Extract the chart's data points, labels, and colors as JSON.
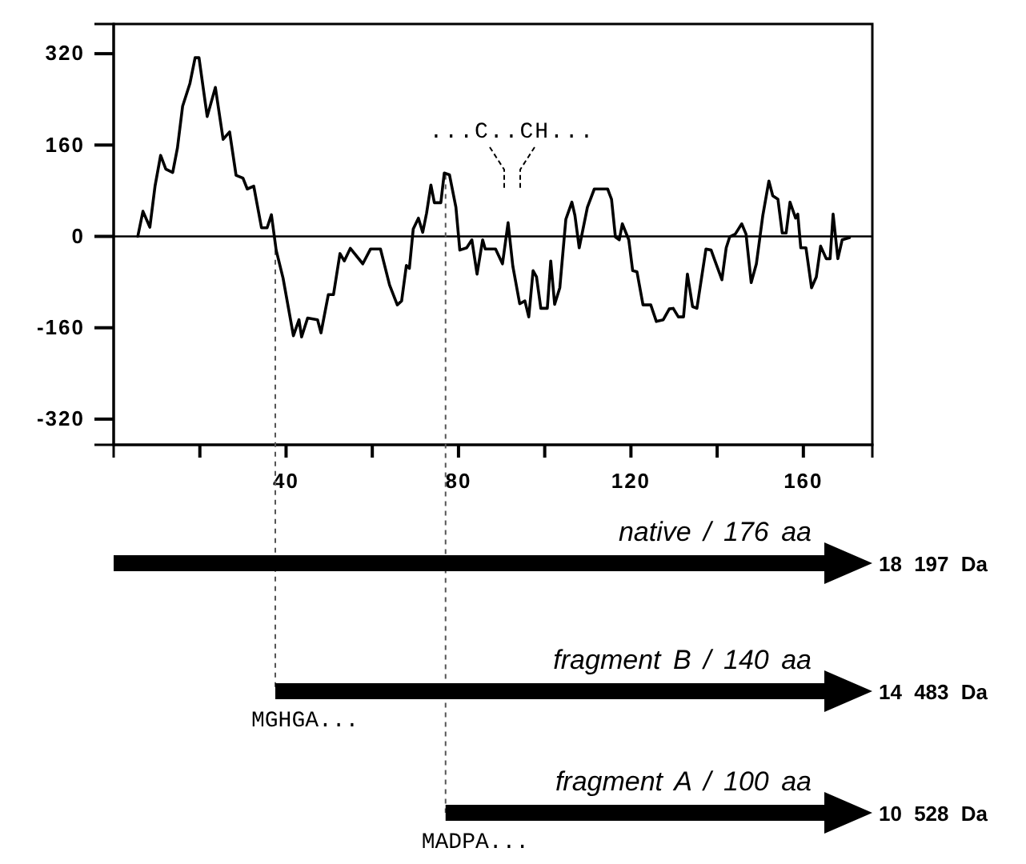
{
  "chart_data": {
    "type": "line",
    "x": [
      5.6,
      6.8,
      8.4,
      9.6,
      10.9,
      12.1,
      13.7,
      14.8,
      16,
      17.7,
      18.9,
      19.8,
      21.7,
      23.6,
      25.4,
      26.9,
      28.4,
      30,
      31,
      32.5,
      34.3,
      35.6,
      36.6,
      37.7,
      39.3,
      41.7,
      43,
      43.6,
      45,
      47.3,
      48.1,
      49.8,
      51,
      52.5,
      53.5,
      54.9,
      57.8,
      59.6,
      61.9,
      64,
      65.8,
      66.8,
      67.9,
      68.6,
      69.5,
      70.7,
      71.7,
      72.6,
      73.6,
      74.4,
      75.9,
      76.7,
      77.9,
      79.4,
      80.3,
      81.9,
      83.1,
      84.3,
      85.6,
      86.2,
      88.6,
      90.2,
      91.5,
      92.6,
      94.2,
      95.4,
      96.3,
      97.3,
      98.1,
      99.1,
      100.6,
      101.4,
      102.3,
      103.5,
      104.9,
      106.3,
      107,
      108,
      109.9,
      111.5,
      114.6,
      115.5,
      116.4,
      117.3,
      118,
      119.5,
      120.4,
      121.4,
      122.8,
      124.6,
      125.9,
      127.5,
      128.9,
      129.8,
      131,
      132.2,
      133.1,
      134.3,
      135.3,
      137.4,
      138.6,
      139.5,
      141.1,
      142.1,
      142.9,
      144.2,
      145.7,
      146.7,
      147.9,
      149.1,
      150.6,
      152,
      152.9,
      154.1,
      155.1,
      156,
      156.9,
      158.2,
      158.7,
      159.4,
      160.6,
      161.9,
      163,
      164,
      165.3,
      166.2,
      166.9,
      168,
      169,
      170.7
    ],
    "values": [
      0,
      44,
      16,
      88,
      142,
      118,
      112,
      155,
      228,
      268,
      313,
      313,
      210,
      261,
      170,
      183,
      107,
      102,
      83,
      88,
      15,
      15,
      38,
      -24,
      -73,
      -174,
      -146,
      -176,
      -143,
      -146,
      -169,
      -102,
      -102,
      -30,
      -43,
      -21,
      -48,
      -22,
      -22,
      -85,
      -120,
      -113,
      -51,
      -56,
      13,
      32,
      7,
      41,
      90,
      59,
      59,
      111,
      108,
      51,
      -24,
      -20,
      -6,
      -66,
      -6,
      -22,
      -22,
      -48,
      24,
      -52,
      -118,
      -113,
      -141,
      -60,
      -71,
      -126,
      -126,
      -43,
      -119,
      -90,
      30,
      60,
      37,
      -20,
      51,
      83,
      83,
      65,
      -1,
      -6,
      22,
      -6,
      -60,
      -62,
      -120,
      -120,
      -149,
      -146,
      -127,
      -126,
      -141,
      -141,
      -66,
      -123,
      -126,
      -22,
      -24,
      -43,
      -76,
      -20,
      -1,
      4,
      22,
      4,
      -81,
      -48,
      37,
      97,
      71,
      65,
      6,
      6,
      60,
      32,
      39,
      -20,
      -20,
      -90,
      -71,
      -17,
      -39,
      -39,
      39,
      -39,
      -6,
      -2
    ],
    "color": "#000000",
    "marker": "none",
    "line_style": "solid",
    "xlim": [
      0,
      176
    ],
    "ylim": [
      -365,
      372
    ],
    "xticks": [
      {
        "value": 20,
        "label": null
      },
      40,
      {
        "value": 60,
        "label": null
      },
      80,
      {
        "value": 100,
        "label": null
      },
      120,
      {
        "value": 140,
        "label": null
      },
      160
    ],
    "yticks": [
      -320,
      -160,
      0,
      160,
      320
    ],
    "grid": false,
    "ref_lines": [
      {
        "axis": "y",
        "value": 0,
        "color": "#000000",
        "line_style": "solid"
      },
      {
        "axis": "x",
        "value": 37.5,
        "color": "#555555",
        "line_style": "dashed"
      },
      {
        "axis": "x",
        "value": 77,
        "color": "#555555",
        "line_style": "dashed"
      }
    ],
    "annotations": [
      "...C..CH...",
      "native / 176 aa",
      "18 197 Da",
      "fragment B / 140 aa",
      "14 483 Da",
      "MGHGA...",
      "fragment A / 100 aa",
      "10 528 Da",
      "MADPA..."
    ]
  }
}
